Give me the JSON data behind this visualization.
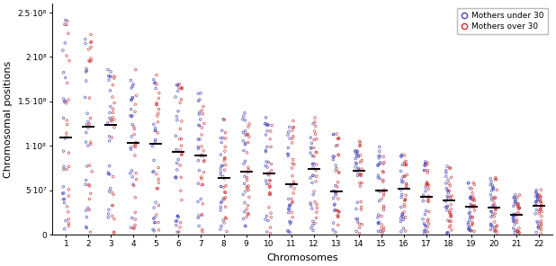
{
  "xlabel": "Chromosomes",
  "ylabel": "Chromosomal positions",
  "ylim": [
    0,
    260000000.0
  ],
  "yticks": [
    0,
    50000000.0,
    100000000.0,
    150000000.0,
    200000000.0,
    250000000.0
  ],
  "ytick_labels": [
    "0",
    "5·10⁷",
    "1·10⁸",
    "1.5·10⁸",
    "2·10⁸",
    "2.5·10⁸"
  ],
  "chromosomes": [
    1,
    2,
    3,
    4,
    5,
    6,
    7,
    8,
    9,
    10,
    11,
    12,
    13,
    14,
    15,
    16,
    17,
    18,
    19,
    20,
    21,
    22
  ],
  "chr_lengths": [
    248956422,
    242193529,
    198295559,
    190214555,
    181538259,
    170805979,
    159345973,
    145138636,
    138394717,
    133797422,
    135086622,
    133275309,
    114364328,
    107043718,
    101991189,
    90338345,
    83257441,
    80373285,
    58617616,
    64444167,
    46709983,
    50818468
  ],
  "color_under30": "#4444bb",
  "color_over30": "#cc3333",
  "median_color": "#000000",
  "background_color": "#ffffff",
  "legend_labels": [
    "Mothers under 30",
    "Mothers over 30"
  ],
  "n_points": 22,
  "seed": 42,
  "figsize": [
    6.18,
    2.96
  ],
  "dpi": 100
}
